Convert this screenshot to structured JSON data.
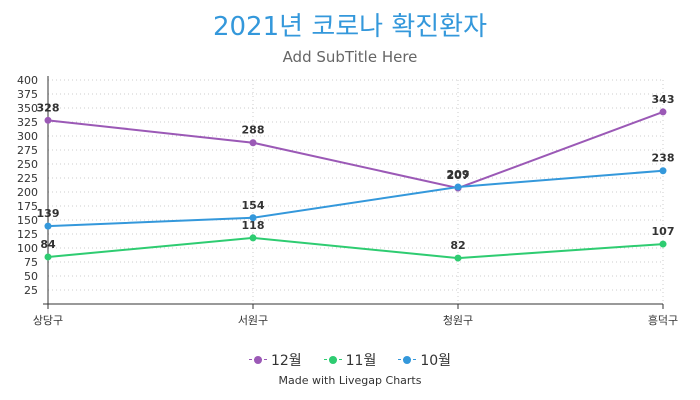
{
  "chart_data": {
    "type": "line",
    "title": "2021년 코로나 확진환자",
    "subtitle": "Add SubTitle Here",
    "categories": [
      "상당구",
      "서원구",
      "청원구",
      "흥덕구"
    ],
    "yticks": [
      25,
      50,
      75,
      100,
      125,
      150,
      175,
      200,
      225,
      250,
      275,
      300,
      325,
      350,
      375,
      400
    ],
    "ylim": [
      0,
      400
    ],
    "grid": true,
    "legend_position": "bottom",
    "series": [
      {
        "name": "12월",
        "color": "#9b59b6",
        "values": [
          328,
          288,
          207,
          343
        ]
      },
      {
        "name": "11월",
        "color": "#2ecc71",
        "values": [
          84,
          118,
          82,
          107
        ]
      },
      {
        "name": "10월",
        "color": "#3498db",
        "values": [
          139,
          154,
          209,
          238
        ]
      }
    ]
  },
  "credit": "Made with Livegap Charts"
}
